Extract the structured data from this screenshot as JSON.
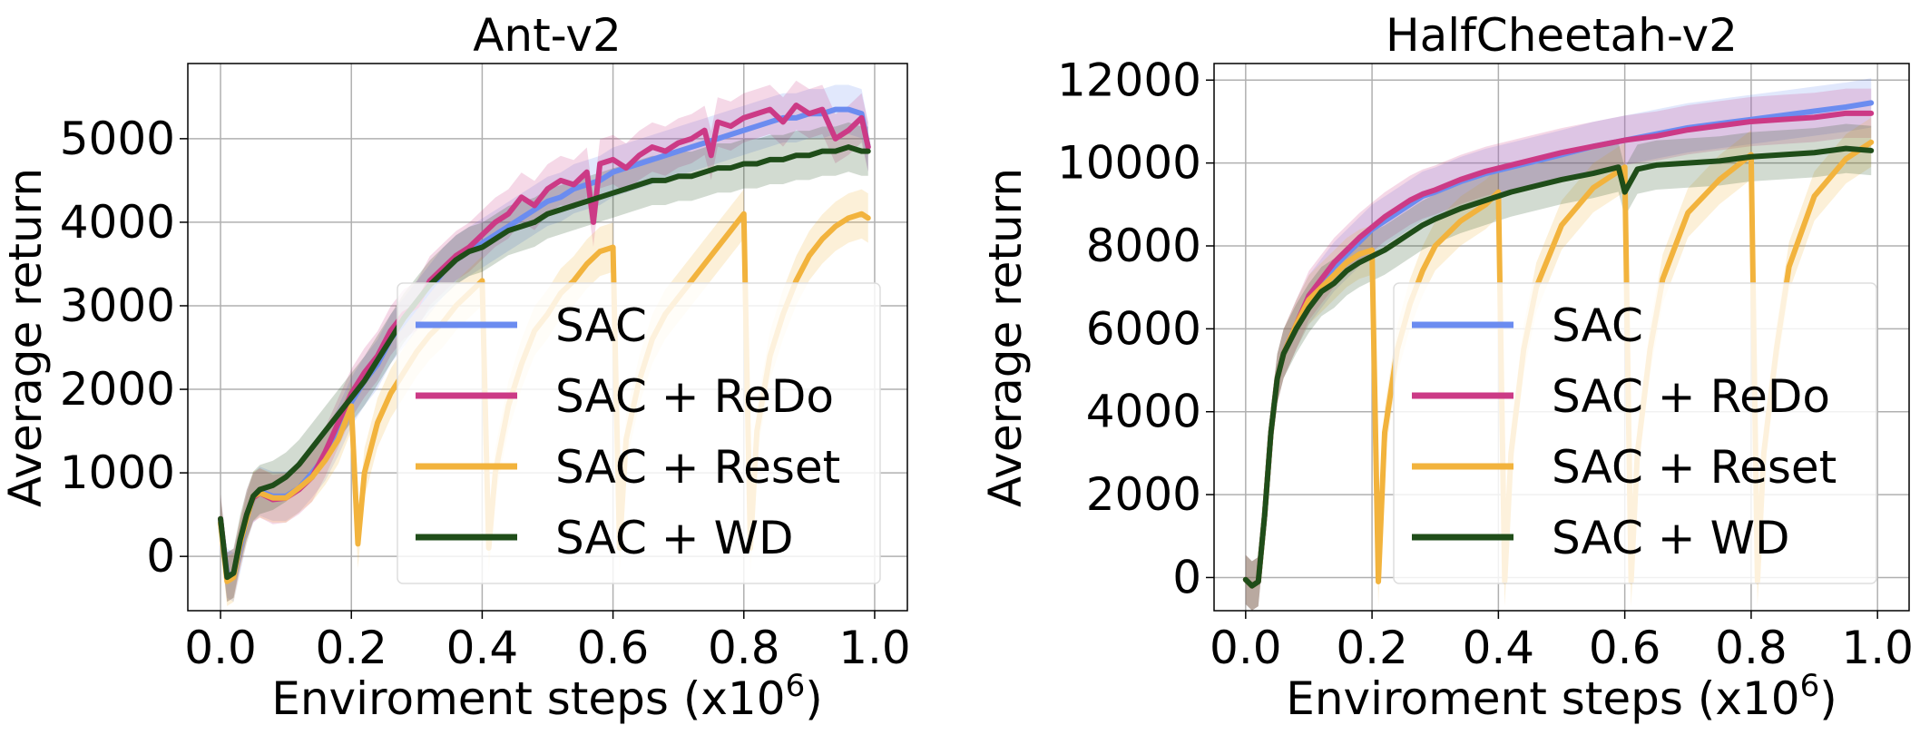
{
  "colors": {
    "SAC": "#6b8cf0",
    "SAC + ReDo": "#cc3a86",
    "SAC + Reset": "#f2b33d",
    "SAC + WD": "#1f4d19"
  },
  "series_names": [
    "SAC",
    "SAC + ReDo",
    "SAC + Reset",
    "SAC + WD"
  ],
  "chart_data": [
    {
      "type": "line",
      "title": "Ant-v2",
      "xlabel": "Enviroment steps (x10",
      "xlabel_sup": "6",
      "xlabel_end": ")",
      "ylabel": "Average return",
      "xlim": [
        -0.05,
        1.05
      ],
      "ylim": [
        -650,
        5900
      ],
      "xticks": [
        0.0,
        0.2,
        0.4,
        0.6,
        0.8,
        1.0
      ],
      "xtick_labels": [
        "0.0",
        "0.2",
        "0.4",
        "0.6",
        "0.8",
        "1.0"
      ],
      "yticks": [
        0,
        1000,
        2000,
        3000,
        4000,
        5000
      ],
      "ytick_labels": [
        "0",
        "1000",
        "2000",
        "3000",
        "4000",
        "5000"
      ],
      "grid": true,
      "legend_position": "lower-right",
      "series": [
        {
          "name": "SAC",
          "x": [
            0.0,
            0.01,
            0.02,
            0.03,
            0.04,
            0.05,
            0.06,
            0.08,
            0.1,
            0.12,
            0.14,
            0.16,
            0.18,
            0.2,
            0.22,
            0.24,
            0.26,
            0.28,
            0.3,
            0.32,
            0.34,
            0.36,
            0.38,
            0.4,
            0.42,
            0.44,
            0.46,
            0.48,
            0.5,
            0.52,
            0.54,
            0.56,
            0.58,
            0.6,
            0.62,
            0.64,
            0.66,
            0.68,
            0.7,
            0.72,
            0.74,
            0.76,
            0.78,
            0.8,
            0.82,
            0.84,
            0.86,
            0.88,
            0.9,
            0.92,
            0.94,
            0.96,
            0.98,
            0.99
          ],
          "y": [
            400,
            -200,
            -250,
            100,
            450,
            700,
            780,
            720,
            720,
            820,
            1000,
            1200,
            1500,
            1850,
            2100,
            2300,
            2600,
            2800,
            3000,
            3200,
            3400,
            3550,
            3650,
            3750,
            3850,
            3950,
            4050,
            4150,
            4250,
            4300,
            4400,
            4450,
            4500,
            4600,
            4650,
            4700,
            4750,
            4800,
            4850,
            4900,
            4950,
            5000,
            5050,
            5100,
            5150,
            5200,
            5250,
            5250,
            5300,
            5300,
            5350,
            5350,
            5300,
            4900
          ]
        },
        {
          "name": "SAC + ReDo",
          "x": [
            0.0,
            0.01,
            0.02,
            0.03,
            0.04,
            0.05,
            0.06,
            0.08,
            0.1,
            0.12,
            0.14,
            0.16,
            0.18,
            0.2,
            0.22,
            0.24,
            0.26,
            0.28,
            0.3,
            0.32,
            0.34,
            0.36,
            0.38,
            0.4,
            0.42,
            0.44,
            0.46,
            0.48,
            0.5,
            0.52,
            0.54,
            0.56,
            0.57,
            0.58,
            0.6,
            0.62,
            0.64,
            0.66,
            0.68,
            0.7,
            0.72,
            0.74,
            0.75,
            0.76,
            0.78,
            0.8,
            0.82,
            0.84,
            0.86,
            0.88,
            0.9,
            0.92,
            0.94,
            0.96,
            0.98,
            0.99
          ],
          "y": [
            450,
            -250,
            -200,
            150,
            500,
            700,
            760,
            680,
            700,
            800,
            950,
            1250,
            1600,
            1950,
            2200,
            2400,
            2700,
            2900,
            3000,
            3300,
            3450,
            3600,
            3700,
            3850,
            4000,
            4100,
            4300,
            4200,
            4400,
            4500,
            4450,
            4600,
            4000,
            4700,
            4750,
            4650,
            4800,
            4900,
            4850,
            4950,
            5000,
            5100,
            4800,
            5200,
            5150,
            5250,
            5300,
            5350,
            5200,
            5400,
            5300,
            5350,
            5000,
            5100,
            5250,
            4900
          ]
        },
        {
          "name": "SAC + Reset",
          "x": [
            0.0,
            0.01,
            0.02,
            0.03,
            0.04,
            0.05,
            0.06,
            0.08,
            0.1,
            0.12,
            0.14,
            0.16,
            0.18,
            0.2,
            0.21,
            0.22,
            0.24,
            0.26,
            0.28,
            0.3,
            0.32,
            0.34,
            0.36,
            0.38,
            0.4,
            0.41,
            0.42,
            0.44,
            0.46,
            0.48,
            0.5,
            0.52,
            0.54,
            0.56,
            0.58,
            0.6,
            0.61,
            0.62,
            0.64,
            0.66,
            0.68,
            0.7,
            0.72,
            0.74,
            0.76,
            0.78,
            0.8,
            0.81,
            0.82,
            0.84,
            0.86,
            0.88,
            0.9,
            0.92,
            0.94,
            0.96,
            0.98,
            0.99
          ],
          "y": [
            400,
            -300,
            -250,
            150,
            450,
            720,
            760,
            700,
            700,
            820,
            950,
            1150,
            1400,
            1800,
            150,
            1000,
            1600,
            1950,
            2200,
            2450,
            2650,
            2800,
            3000,
            3150,
            3300,
            100,
            1000,
            1800,
            2300,
            2700,
            2900,
            3150,
            3300,
            3500,
            3650,
            3700,
            100,
            1400,
            2100,
            2600,
            2900,
            3100,
            3300,
            3500,
            3700,
            3900,
            4100,
            100,
            1500,
            2400,
            2900,
            3300,
            3600,
            3800,
            3950,
            4050,
            4100,
            4050
          ]
        },
        {
          "name": "SAC + WD",
          "x": [
            0.0,
            0.01,
            0.02,
            0.03,
            0.04,
            0.05,
            0.06,
            0.08,
            0.1,
            0.12,
            0.14,
            0.16,
            0.18,
            0.2,
            0.22,
            0.24,
            0.26,
            0.28,
            0.3,
            0.32,
            0.34,
            0.36,
            0.38,
            0.4,
            0.42,
            0.44,
            0.46,
            0.48,
            0.5,
            0.52,
            0.54,
            0.56,
            0.58,
            0.6,
            0.62,
            0.64,
            0.66,
            0.68,
            0.7,
            0.72,
            0.74,
            0.76,
            0.78,
            0.8,
            0.82,
            0.84,
            0.86,
            0.88,
            0.9,
            0.92,
            0.94,
            0.96,
            0.98,
            0.99
          ],
          "y": [
            450,
            -250,
            -200,
            200,
            500,
            720,
            800,
            850,
            950,
            1100,
            1300,
            1500,
            1700,
            1900,
            2100,
            2350,
            2600,
            2850,
            3050,
            3250,
            3400,
            3550,
            3650,
            3700,
            3800,
            3900,
            3950,
            4000,
            4100,
            4150,
            4200,
            4250,
            4300,
            4350,
            4400,
            4450,
            4500,
            4500,
            4550,
            4550,
            4600,
            4650,
            4650,
            4700,
            4700,
            4750,
            4750,
            4800,
            4800,
            4850,
            4850,
            4900,
            4850,
            4850
          ]
        }
      ]
    },
    {
      "type": "line",
      "title": "HalfCheetah-v2",
      "xlabel": "Enviroment steps (x10",
      "xlabel_sup": "6",
      "xlabel_end": ")",
      "ylabel": "Average return",
      "xlim": [
        -0.05,
        1.05
      ],
      "ylim": [
        -800,
        12400
      ],
      "xticks": [
        0.0,
        0.2,
        0.4,
        0.6,
        0.8,
        1.0
      ],
      "xtick_labels": [
        "0.0",
        "0.2",
        "0.4",
        "0.6",
        "0.8",
        "1.0"
      ],
      "yticks": [
        0,
        2000,
        4000,
        6000,
        8000,
        10000,
        12000
      ],
      "ytick_labels": [
        "0",
        "2000",
        "4000",
        "6000",
        "8000",
        "10000",
        "12000"
      ],
      "grid": true,
      "legend_position": "lower-right",
      "series": [
        {
          "name": "SAC",
          "x": [
            0.0,
            0.01,
            0.02,
            0.03,
            0.04,
            0.05,
            0.06,
            0.08,
            0.1,
            0.12,
            0.14,
            0.16,
            0.18,
            0.2,
            0.22,
            0.24,
            0.26,
            0.28,
            0.3,
            0.34,
            0.38,
            0.42,
            0.46,
            0.5,
            0.55,
            0.6,
            0.65,
            0.7,
            0.75,
            0.8,
            0.85,
            0.9,
            0.95,
            0.99
          ],
          "y": [
            -50,
            -200,
            -100,
            1500,
            3500,
            4800,
            5400,
            6100,
            6700,
            7100,
            7500,
            7800,
            8100,
            8400,
            8600,
            8800,
            9000,
            9200,
            9300,
            9550,
            9750,
            9900,
            10050,
            10200,
            10400,
            10550,
            10700,
            10850,
            10950,
            11050,
            11150,
            11250,
            11350,
            11450
          ]
        },
        {
          "name": "SAC + ReDo",
          "x": [
            0.0,
            0.01,
            0.02,
            0.03,
            0.04,
            0.05,
            0.06,
            0.08,
            0.1,
            0.12,
            0.14,
            0.16,
            0.18,
            0.2,
            0.22,
            0.24,
            0.26,
            0.28,
            0.3,
            0.34,
            0.38,
            0.42,
            0.46,
            0.5,
            0.55,
            0.6,
            0.65,
            0.7,
            0.75,
            0.8,
            0.85,
            0.9,
            0.95,
            0.99
          ],
          "y": [
            -50,
            -200,
            -100,
            1500,
            3500,
            4800,
            5400,
            6100,
            6800,
            7200,
            7600,
            7900,
            8200,
            8450,
            8700,
            8900,
            9100,
            9250,
            9350,
            9600,
            9800,
            9950,
            10100,
            10250,
            10400,
            10550,
            10650,
            10800,
            10900,
            11000,
            11050,
            11100,
            11200,
            11200
          ]
        },
        {
          "name": "SAC + Reset",
          "x": [
            0.0,
            0.01,
            0.02,
            0.03,
            0.04,
            0.05,
            0.06,
            0.08,
            0.1,
            0.12,
            0.14,
            0.16,
            0.18,
            0.2,
            0.21,
            0.22,
            0.24,
            0.26,
            0.28,
            0.3,
            0.34,
            0.38,
            0.4,
            0.41,
            0.42,
            0.44,
            0.46,
            0.5,
            0.55,
            0.6,
            0.61,
            0.62,
            0.64,
            0.66,
            0.7,
            0.75,
            0.8,
            0.81,
            0.82,
            0.84,
            0.86,
            0.9,
            0.95,
            0.99
          ],
          "y": [
            -50,
            -200,
            -100,
            1500,
            3500,
            4800,
            5400,
            6100,
            6700,
            7000,
            7300,
            7600,
            7800,
            7900,
            -100,
            3500,
            5500,
            6600,
            7400,
            8000,
            8600,
            9000,
            9300,
            -100,
            3000,
            5500,
            7000,
            8500,
            9400,
            9900,
            -100,
            3000,
            5500,
            7200,
            8800,
            9600,
            10200,
            -100,
            3000,
            5500,
            7500,
            9200,
            10100,
            10500
          ]
        },
        {
          "name": "SAC + WD",
          "x": [
            0.0,
            0.01,
            0.02,
            0.03,
            0.04,
            0.05,
            0.06,
            0.08,
            0.1,
            0.12,
            0.14,
            0.16,
            0.18,
            0.2,
            0.22,
            0.24,
            0.26,
            0.28,
            0.3,
            0.34,
            0.38,
            0.42,
            0.46,
            0.5,
            0.55,
            0.59,
            0.6,
            0.62,
            0.65,
            0.7,
            0.75,
            0.8,
            0.85,
            0.9,
            0.95,
            0.99
          ],
          "y": [
            -50,
            -200,
            -100,
            1500,
            3500,
            4800,
            5400,
            6000,
            6500,
            6900,
            7100,
            7400,
            7600,
            7750,
            7900,
            8100,
            8300,
            8500,
            8650,
            8900,
            9100,
            9300,
            9450,
            9600,
            9750,
            9900,
            9300,
            9850,
            9950,
            10000,
            10050,
            10150,
            10200,
            10250,
            10350,
            10300
          ]
        }
      ]
    }
  ]
}
